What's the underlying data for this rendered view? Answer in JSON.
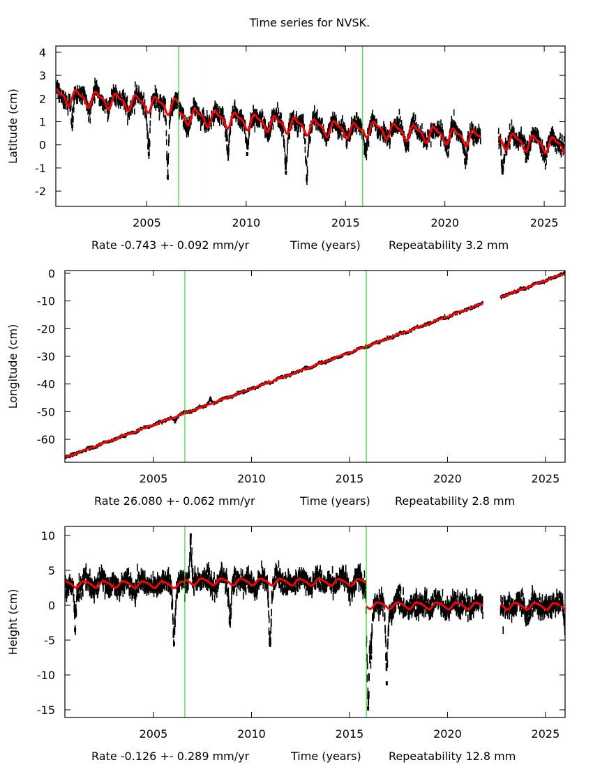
{
  "title": "Time series for NVSK.",
  "colors": {
    "data": "#000000",
    "model": "#ff0000",
    "break_line": "#00dd00",
    "frame": "#000000"
  },
  "chart_data": [
    {
      "type": "scatter",
      "ylabel": "Latitude (cm)",
      "xlabel": "Time (years)",
      "rate_text": "Rate -0.743 +- 0.092 mm/yr",
      "repeatability_text": "Repeatability 3.2 mm",
      "xlim": [
        2000.42,
        2026.05
      ],
      "ylim": [
        -2.66,
        4.27
      ],
      "xticks": [
        "2005",
        "2010",
        "2015",
        "2020",
        "2025"
      ],
      "yticks": [
        "4",
        "3",
        "2",
        "1",
        "0",
        "-1",
        "-2"
      ],
      "grid": false,
      "breaks": [
        2006.6,
        2015.86
      ],
      "data_gap": [
        2021.8,
        2022.7
      ],
      "model": {
        "rate_cm_per_yr": -0.0743,
        "segment_offsets_cm_at_2000": [
          2.15,
          1.77,
          1.9
        ],
        "annual_amplitude_cm": 0.3,
        "semiannual_amplitude_cm": 0.12
      },
      "scatter_sd_cm": 0.22,
      "transients": [
        {
          "year": 2001.25,
          "value": 0.8
        },
        {
          "year": 2005.1,
          "value": -0.4
        },
        {
          "year": 2006.05,
          "value": -1.4
        },
        {
          "year": 2009.1,
          "value": -0.2
        },
        {
          "year": 2010.05,
          "value": -0.4
        },
        {
          "year": 2012.0,
          "value": -1.2
        },
        {
          "year": 2013.05,
          "value": -1.5
        },
        {
          "year": 2016.0,
          "value": -0.2
        },
        {
          "year": 2021.05,
          "value": -0.7
        },
        {
          "year": 2022.9,
          "value": -1.2
        }
      ]
    },
    {
      "type": "scatter",
      "ylabel": "Longitude (cm)",
      "xlabel": "Time (years)",
      "rate_text": "Rate 26.080 +- 0.062 mm/yr",
      "repeatability_text": "Repeatability 2.8 mm",
      "xlim": [
        2000.48,
        2026.0
      ],
      "ylim": [
        -68.3,
        1.0
      ],
      "xticks": [
        "2005",
        "2010",
        "2015",
        "2020",
        "2025"
      ],
      "yticks": [
        "0",
        "-10",
        "-20",
        "-30",
        "-40",
        "-50",
        "-60"
      ],
      "grid": false,
      "breaks": [
        2006.6,
        2015.86
      ],
      "data_gap": [
        2021.8,
        2022.7
      ],
      "model": {
        "rate_cm_per_yr": 2.608,
        "segment_offsets_cm_at_2000": [
          -67.8,
          -67.8,
          -67.8
        ],
        "annual_amplitude_cm": 0.15,
        "semiannual_amplitude_cm": 0.05
      },
      "scatter_sd_cm": 0.3,
      "transients": [
        {
          "year": 2006.1,
          "value": -53.5
        },
        {
          "year": 2007.9,
          "value": -45.5
        }
      ]
    },
    {
      "type": "scatter",
      "ylabel": "Height (cm)",
      "xlabel": "Time (years)",
      "rate_text": "Rate -0.126 +- 0.289 mm/yr",
      "repeatability_text": "Repeatability 12.8 mm",
      "xlim": [
        2000.48,
        2026.0
      ],
      "ylim": [
        -16.1,
        11.3
      ],
      "xticks": [
        "2005",
        "2010",
        "2015",
        "2020",
        "2025"
      ],
      "yticks": [
        "10",
        "5",
        "0",
        "-5",
        "-10",
        "-15"
      ],
      "grid": false,
      "breaks": [
        2006.6,
        2015.86
      ],
      "data_gap": [
        2021.8,
        2022.7
      ],
      "model": {
        "rate_cm_per_yr": -0.0126,
        "segment_offsets_cm_at_2000": [
          3.05,
          3.5,
          0.2
        ],
        "annual_amplitude_cm": 0.45,
        "semiannual_amplitude_cm": 0.1
      },
      "scatter_sd_cm": 0.9,
      "transients": [
        {
          "year": 2001.0,
          "value": -3.5
        },
        {
          "year": 2006.05,
          "value": -5.5
        },
        {
          "year": 2006.9,
          "value": 10.0
        },
        {
          "year": 2008.9,
          "value": -2.5
        },
        {
          "year": 2010.95,
          "value": -5.5
        },
        {
          "year": 2015.95,
          "value": -14.8
        },
        {
          "year": 2016.1,
          "value": -7.5
        },
        {
          "year": 2016.9,
          "value": -11.2
        },
        {
          "year": 2026.0,
          "value": -3.2
        }
      ]
    }
  ]
}
